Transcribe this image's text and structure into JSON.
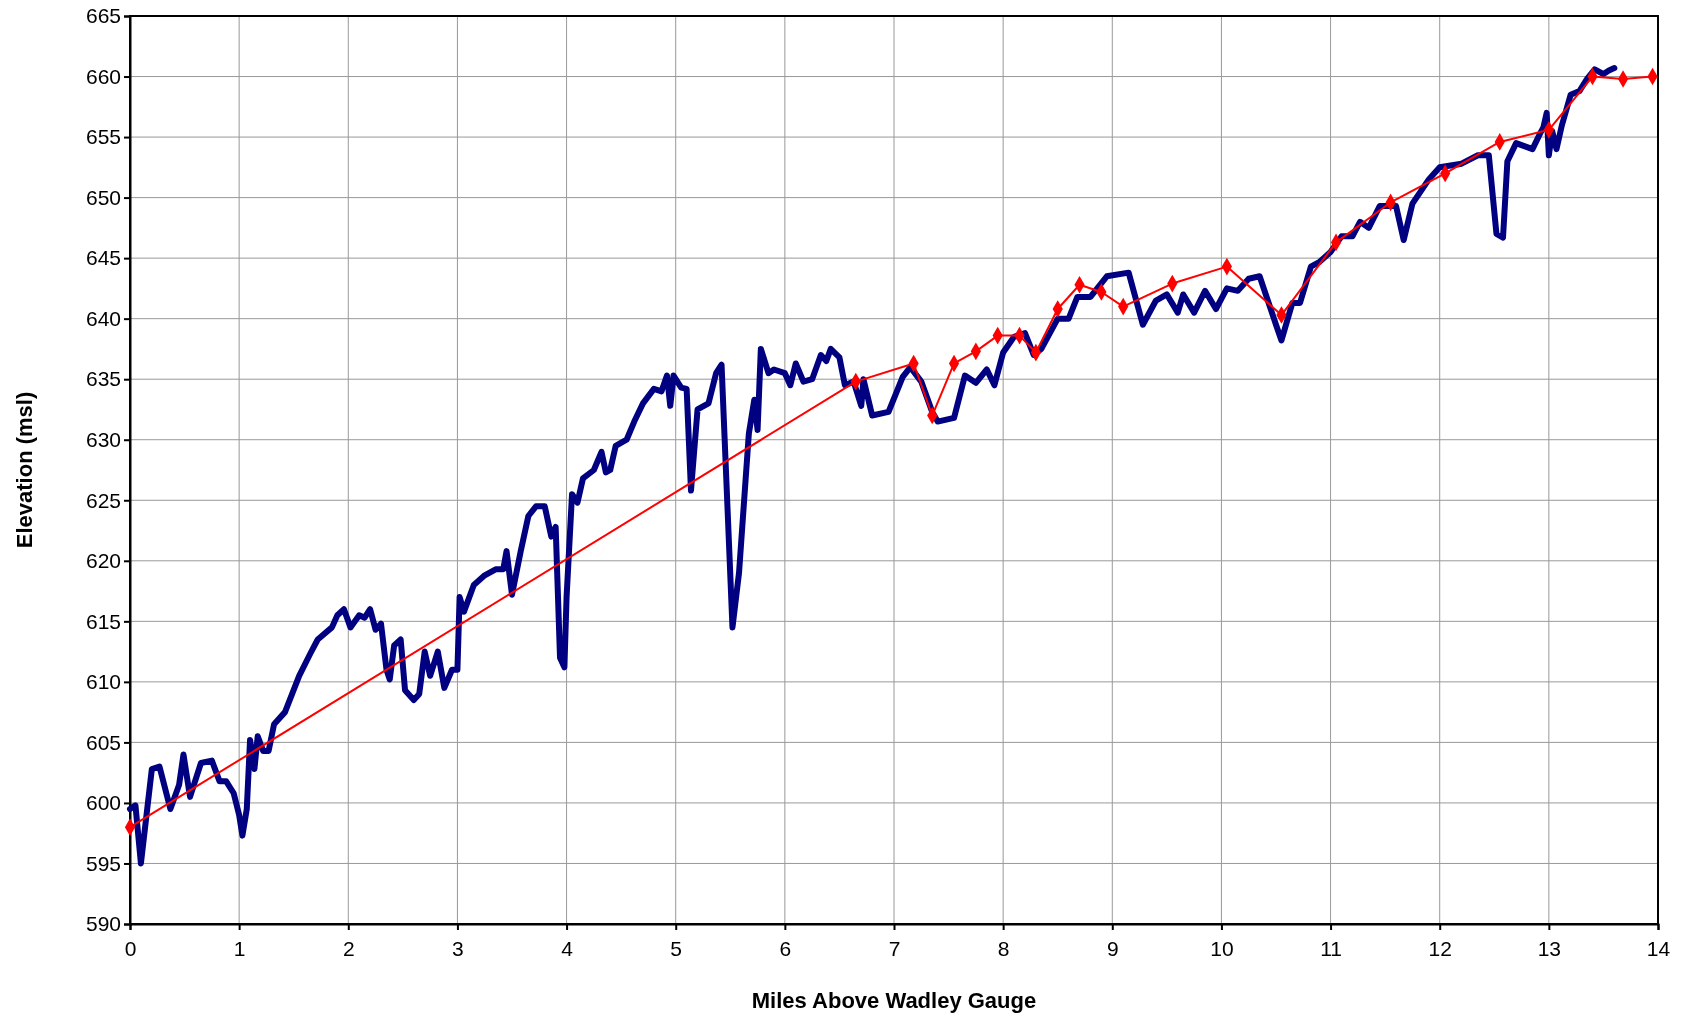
{
  "chart_data": {
    "type": "line",
    "xlabel": "Miles Above Wadley Gauge",
    "ylabel": "Elevation (msl)",
    "xlim": [
      0,
      14
    ],
    "xticks": [
      0,
      1,
      2,
      3,
      4,
      5,
      6,
      7,
      8,
      9,
      10,
      11,
      12,
      13,
      14
    ],
    "ylim": [
      590,
      665
    ],
    "yticks": [
      590,
      595,
      600,
      605,
      610,
      615,
      620,
      625,
      630,
      635,
      640,
      645,
      650,
      655,
      660,
      665
    ],
    "grid": true,
    "series": [
      {
        "color": "#000080",
        "marker": "none",
        "x": [
          0,
          0.05,
          0.1,
          0.2,
          0.27,
          0.37,
          0.45,
          0.49,
          0.55,
          0.65,
          0.75,
          0.82,
          0.88,
          0.95,
          1.0,
          1.03,
          1.07,
          1.1,
          1.14,
          1.17,
          1.22,
          1.27,
          1.32,
          1.42,
          1.55,
          1.65,
          1.72,
          1.85,
          1.9,
          1.96,
          2.02,
          2.1,
          2.15,
          2.2,
          2.25,
          2.3,
          2.35,
          2.38,
          2.42,
          2.48,
          2.52,
          2.6,
          2.65,
          2.7,
          2.75,
          2.82,
          2.88,
          2.95,
          3.0,
          3.02,
          3.06,
          3.15,
          3.25,
          3.35,
          3.42,
          3.45,
          3.5,
          3.58,
          3.65,
          3.72,
          3.8,
          3.86,
          3.9,
          3.94,
          3.98,
          4.0,
          4.05,
          4.1,
          4.15,
          4.25,
          4.32,
          4.36,
          4.4,
          4.45,
          4.55,
          4.62,
          4.7,
          4.8,
          4.87,
          4.92,
          4.95,
          4.98,
          5.05,
          5.1,
          5.14,
          5.2,
          5.3,
          5.37,
          5.42,
          5.52,
          5.58,
          5.67,
          5.72,
          5.75,
          5.78,
          5.85,
          5.9,
          6.0,
          6.05,
          6.1,
          6.17,
          6.25,
          6.33,
          6.38,
          6.42,
          6.5,
          6.55,
          6.63,
          6.7,
          6.72,
          6.8,
          6.95,
          7.08,
          7.15,
          7.25,
          7.35,
          7.4,
          7.55,
          7.65,
          7.75,
          7.85,
          7.92,
          8.0,
          8.1,
          8.2,
          8.28,
          8.35,
          8.5,
          8.6,
          8.68,
          8.8,
          8.95,
          9.15,
          9.28,
          9.4,
          9.5,
          9.6,
          9.65,
          9.75,
          9.85,
          9.95,
          10.05,
          10.15,
          10.25,
          10.35,
          10.5,
          10.55,
          10.65,
          10.72,
          10.82,
          10.9,
          11.0,
          11.1,
          11.2,
          11.27,
          11.35,
          11.45,
          11.6,
          11.67,
          11.75,
          11.9,
          12.0,
          12.2,
          12.35,
          12.45,
          12.52,
          12.58,
          12.62,
          12.7,
          12.85,
          12.92,
          12.95,
          12.98,
          13.0,
          13.03,
          13.07,
          13.12,
          13.2,
          13.28,
          13.35,
          13.42,
          13.5,
          13.55,
          13.6
        ],
        "values": [
          599.5,
          599.8,
          595,
          602.8,
          603,
          599.5,
          601.5,
          604,
          600.5,
          603.3,
          603.5,
          601.8,
          601.8,
          600.8,
          599,
          597.3,
          599.5,
          605.2,
          602.8,
          605.5,
          604.3,
          604.3,
          606.5,
          607.5,
          610.5,
          612.3,
          613.5,
          614.5,
          615.5,
          616,
          614.5,
          615.5,
          615.3,
          616,
          614.3,
          614.8,
          611,
          610.2,
          613,
          613.5,
          609.3,
          608.5,
          609,
          612.5,
          610.5,
          612.5,
          609.5,
          611,
          611,
          617,
          615.8,
          618,
          618.8,
          619.3,
          619.3,
          620.8,
          617.2,
          620.8,
          623.7,
          624.5,
          624.5,
          622,
          622.8,
          612,
          611.2,
          617,
          625.5,
          624.8,
          626.8,
          627.5,
          629,
          627.3,
          627.5,
          629.5,
          630,
          631.5,
          633,
          634.2,
          634,
          635.3,
          632.8,
          635.3,
          634.3,
          634.2,
          625.8,
          632.5,
          633,
          635.5,
          636.2,
          614.5,
          619,
          630.5,
          633.3,
          630.8,
          637.5,
          635.5,
          635.8,
          635.5,
          634.5,
          636.3,
          634.8,
          635,
          637,
          636.5,
          637.5,
          636.8,
          634.5,
          634.8,
          632.8,
          635,
          632,
          632.3,
          635.2,
          636,
          634.8,
          632.3,
          631.5,
          631.8,
          635.3,
          634.7,
          635.8,
          634.5,
          637.2,
          638.5,
          638.8,
          637,
          637.5,
          640,
          640,
          641.8,
          641.8,
          643.5,
          643.8,
          639.5,
          641.5,
          642,
          640.5,
          642,
          640.5,
          642.3,
          640.8,
          642.5,
          642.3,
          643.3,
          643.5,
          639.5,
          638.2,
          641.3,
          641.3,
          644.3,
          644.7,
          645.5,
          646.8,
          646.8,
          648,
          647.5,
          649.3,
          649.3,
          646.5,
          649.5,
          651.5,
          652.5,
          652.8,
          653.5,
          653.5,
          647,
          646.7,
          653,
          654.5,
          654,
          655.3,
          655.8,
          657,
          653.5,
          655.5,
          654,
          656,
          658.5,
          658.8,
          659.8,
          660.6,
          660.2,
          660.5,
          660.7
        ]
      },
      {
        "color": "#ff0000",
        "marker": "diamond",
        "x": [
          0,
          6.65,
          7.18,
          7.35,
          7.55,
          7.75,
          7.95,
          8.15,
          8.3,
          8.5,
          8.7,
          8.9,
          9.1,
          9.55,
          10.05,
          10.55,
          11.05,
          11.55,
          12.05,
          12.55,
          13.0,
          13.4,
          13.68,
          13.95
        ],
        "values": [
          598,
          634.8,
          636.3,
          632,
          636.3,
          637.3,
          638.6,
          638.6,
          637.2,
          640.8,
          642.8,
          642.2,
          641,
          642.9,
          644.3,
          640.3,
          646.3,
          649.6,
          652,
          654.6,
          655.6,
          660,
          659.8,
          660
        ]
      }
    ]
  }
}
